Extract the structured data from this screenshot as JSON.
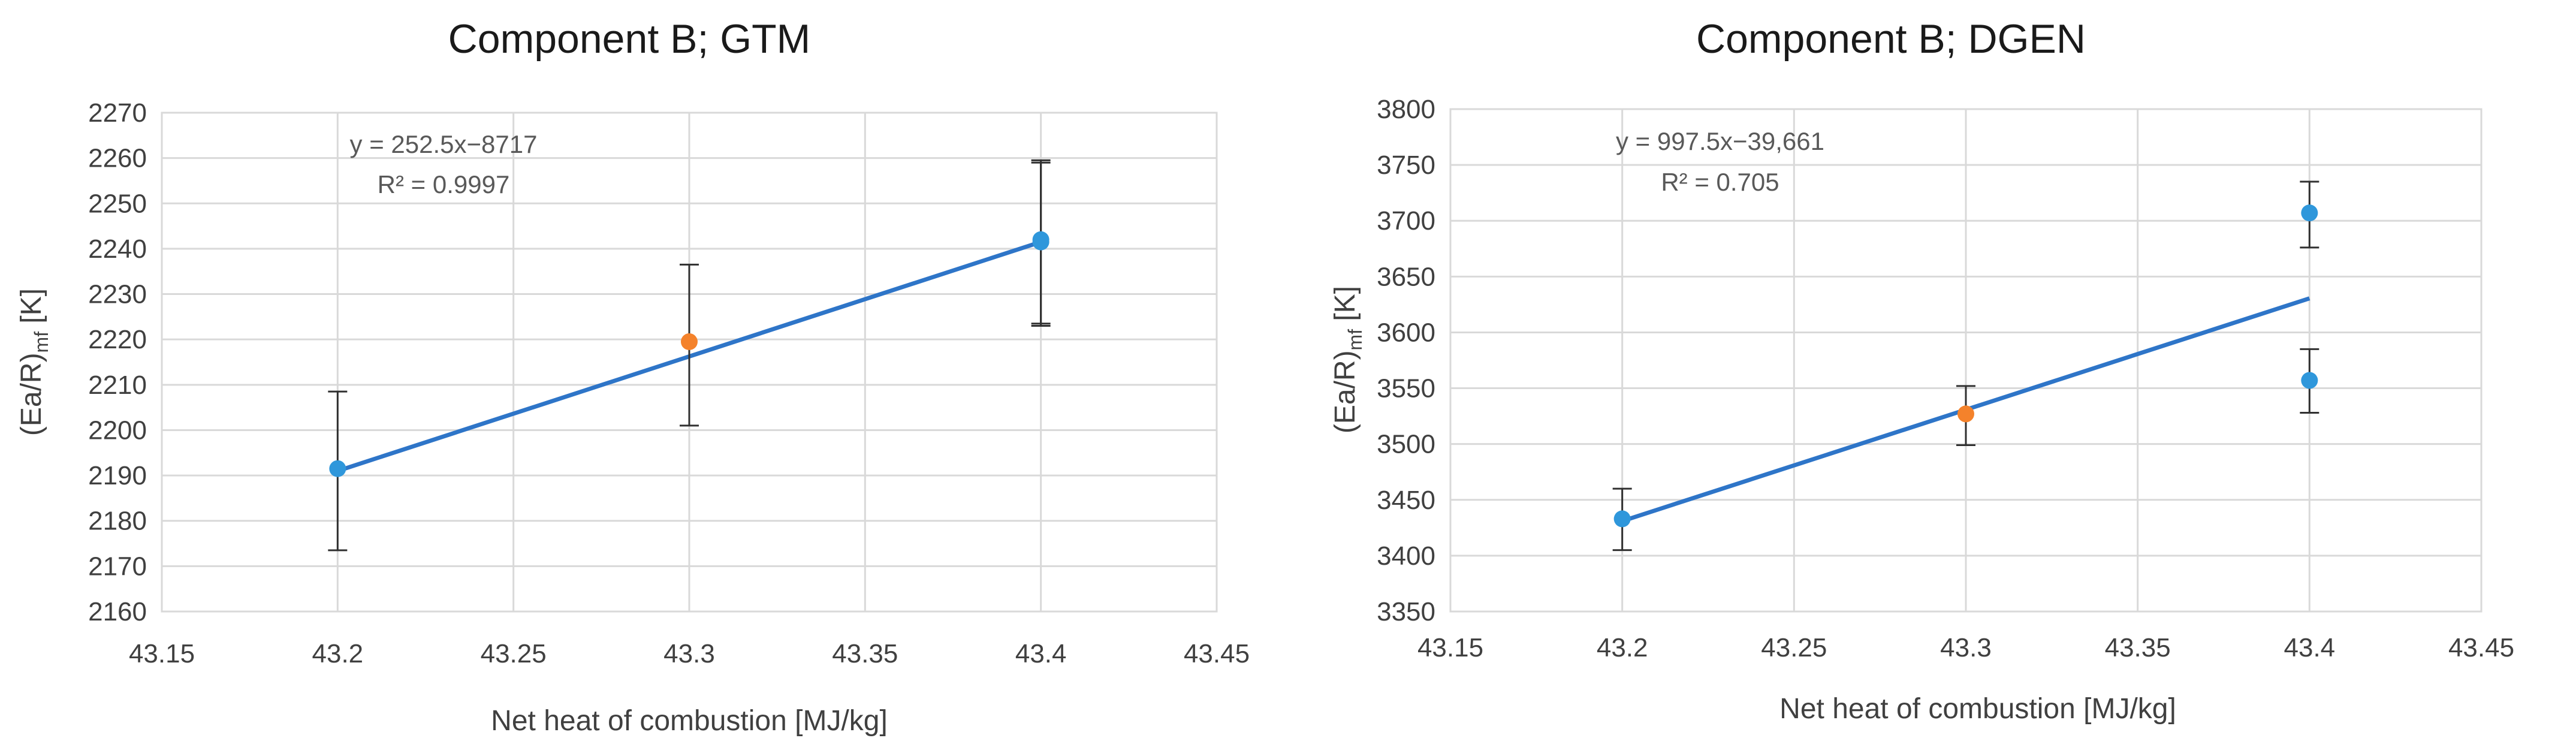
{
  "colors": {
    "blue_point": "#2f97db",
    "orange_point": "#f4822b",
    "trendline": "#2e75c8"
  },
  "chart_data": [
    {
      "type": "scatter",
      "title": "Component B; GTM",
      "xlabel": "Net heat of combustion [MJ/kg]",
      "ylabel_main": "(Ea/R)",
      "ylabel_sub": "mf",
      "ylabel_unit": " [K]",
      "xlim": [
        43.15,
        43.45
      ],
      "ylim": [
        2160,
        2270
      ],
      "xticks": [
        43.15,
        43.2,
        43.25,
        43.3,
        43.35,
        43.4,
        43.45
      ],
      "xtick_labels": [
        "43.15",
        "43.2",
        "43.25",
        "43.3",
        "43.35",
        "43.4",
        "43.45"
      ],
      "yticks": [
        2160,
        2170,
        2180,
        2190,
        2200,
        2210,
        2220,
        2230,
        2240,
        2250,
        2260,
        2270
      ],
      "ytick_labels": [
        "2160",
        "2170",
        "2180",
        "2190",
        "2200",
        "2210",
        "2220",
        "2230",
        "2240",
        "2250",
        "2260",
        "2270"
      ],
      "grid": true,
      "points": [
        {
          "x": 43.2,
          "y": 2191.5,
          "err_low": 2173.5,
          "err_high": 2208.5,
          "color": "blue"
        },
        {
          "x": 43.3,
          "y": 2219.5,
          "err_low": 2201,
          "err_high": 2236.5,
          "color": "orange"
        },
        {
          "x": 43.4,
          "y": 2242,
          "err_low": 2223.5,
          "err_high": 2259.5,
          "color": "blue"
        },
        {
          "x": 43.4,
          "y": 2241.5,
          "err_low": 2223,
          "err_high": 2259,
          "color": "blue"
        }
      ],
      "trendline": {
        "slope": 252.5,
        "intercept": -8717,
        "x_start": 43.2,
        "x_end": 43.4
      },
      "equation": "y = 252.5x−8717",
      "r_squared": "R² = 0.9997"
    },
    {
      "type": "scatter",
      "title": "Component B; DGEN",
      "xlabel": "Net heat of combustion [MJ/kg]",
      "ylabel_main": "(Ea/R)",
      "ylabel_sub": "mf",
      "ylabel_unit": " [K]",
      "xlim": [
        43.15,
        43.45
      ],
      "ylim": [
        3350,
        3800
      ],
      "xticks": [
        43.15,
        43.2,
        43.25,
        43.3,
        43.35,
        43.4,
        43.45
      ],
      "xtick_labels": [
        "43.15",
        "43.2",
        "43.25",
        "43.3",
        "43.35",
        "43.4",
        "43.45"
      ],
      "yticks": [
        3350,
        3400,
        3450,
        3500,
        3550,
        3600,
        3650,
        3700,
        3750,
        3800
      ],
      "ytick_labels": [
        "3350",
        "3400",
        "3450",
        "3500",
        "3550",
        "3600",
        "3650",
        "3700",
        "3750",
        "3800"
      ],
      "grid": true,
      "points": [
        {
          "x": 43.2,
          "y": 3433,
          "err_low": 3405,
          "err_high": 3460,
          "color": "blue"
        },
        {
          "x": 43.3,
          "y": 3527,
          "err_low": 3499,
          "err_high": 3552,
          "color": "orange"
        },
        {
          "x": 43.4,
          "y": 3707,
          "err_low": 3676,
          "err_high": 3735,
          "color": "blue"
        },
        {
          "x": 43.4,
          "y": 3557,
          "err_low": 3528,
          "err_high": 3585,
          "color": "blue"
        }
      ],
      "trendline": {
        "slope": 997.5,
        "intercept": -39661,
        "x_start": 43.2,
        "x_end": 43.4
      },
      "equation": "y = 997.5x−39,661",
      "r_squared": "R² = 0.705"
    }
  ]
}
